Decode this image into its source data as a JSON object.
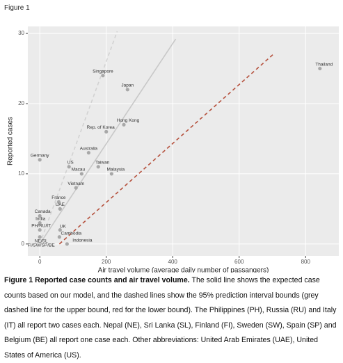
{
  "figure_label": "Figure 1",
  "caption": {
    "title": "Figure 1 Reported case counts and air travel volume.",
    "text": "The solid line shows the expected case counts based on our model, and the dashed lines show the 95% prediction interval bounds (grey dashed line for the upper bound, red for the lower bound). The Philippines (PH), Russia (RU) and Italy (IT) all report two cases each. Nepal (NE), Sri Lanka (SL), Finland (FI), Sweden (SW), Spain (SP) and Belgium (BE) all report one case each. Other abbreviations: United Arab Emirates (UAE), United States of America (US)."
  },
  "chart_data": {
    "type": "scatter",
    "xlabel": "Air travel volume (average daily number of passangers)",
    "ylabel": "Reported cases",
    "xlim": [
      -36,
      900
    ],
    "ylim": [
      -1.7,
      31
    ],
    "xticks": [
      0,
      200,
      400,
      600,
      800
    ],
    "yticks": [
      0,
      10,
      20,
      30
    ],
    "grid": true,
    "point_color": "#a8a8a8",
    "labels": [
      [
        "Thailand"
      ],
      [
        "Singapore"
      ],
      [
        "Japan"
      ],
      [
        "Hong Kong"
      ],
      [
        "Rep. of Korea"
      ],
      [
        "Australia"
      ],
      [
        "Germany"
      ],
      [
        "US"
      ],
      [
        "Taiwan"
      ],
      [
        "Macau"
      ],
      [
        "Malaysia"
      ],
      [
        "Vietnam"
      ],
      [
        "France"
      ],
      [
        "UAE"
      ],
      [
        "Canada"
      ],
      [
        "India"
      ],
      [
        "PH/RU/IT"
      ],
      [
        "UK"
      ],
      [
        "Cambodia"
      ],
      [
        "NE/SL",
        "FI/SW/SP/BE"
      ],
      [
        "Indonesia"
      ]
    ],
    "x": [
      843,
      190,
      264,
      253,
      200,
      147,
      0,
      88,
      176,
      126,
      216,
      109,
      57,
      61,
      0,
      0,
      0,
      61,
      59,
      0,
      82
    ],
    "y": [
      25,
      24,
      22,
      17,
      16,
      13,
      12,
      11,
      11,
      10,
      10,
      8,
      6,
      5,
      4,
      3,
      2,
      2,
      1,
      1,
      0
    ],
    "lines": [
      {
        "x": [
          0,
          409
        ],
        "y": [
          0,
          29.2
        ],
        "color": "#c8c8c8",
        "dashed": false
      },
      {
        "x": [
          0,
          233
        ],
        "y": [
          0,
          30.3
        ],
        "color": "#d2d2d2",
        "dashed": true
      },
      {
        "x": [
          59,
          702
        ],
        "y": [
          0,
          27
        ],
        "color": "#b5503c",
        "dashed": true
      }
    ]
  }
}
